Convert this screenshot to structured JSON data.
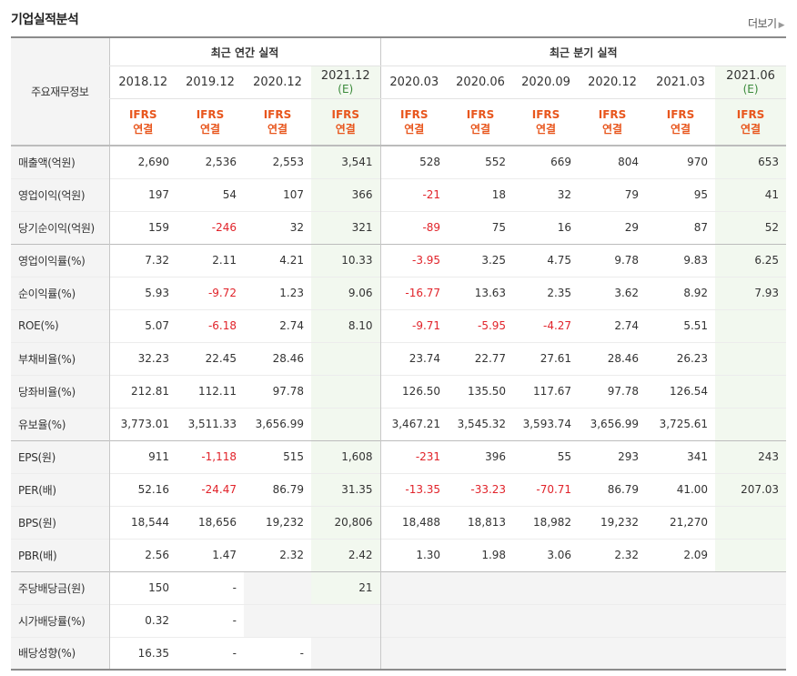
{
  "header": {
    "title": "기업실적분석",
    "more_label": "더보기",
    "more_icon": "chevron-right-icon"
  },
  "table": {
    "label_header": "주요재무정보",
    "groups": [
      {
        "label": "최근 연간 실적"
      },
      {
        "label": "최근 분기 실적"
      }
    ],
    "columns": [
      {
        "period": "2018.12",
        "est": "",
        "ifrs": "IFRS",
        "basis": "연결"
      },
      {
        "period": "2019.12",
        "est": "",
        "ifrs": "IFRS",
        "basis": "연결"
      },
      {
        "period": "2020.12",
        "est": "",
        "ifrs": "IFRS",
        "basis": "연결"
      },
      {
        "period": "2021.12",
        "est": "(E)",
        "ifrs": "IFRS",
        "basis": "연결"
      },
      {
        "period": "2020.03",
        "est": "",
        "ifrs": "IFRS",
        "basis": "연결"
      },
      {
        "period": "2020.06",
        "est": "",
        "ifrs": "IFRS",
        "basis": "연결"
      },
      {
        "period": "2020.09",
        "est": "",
        "ifrs": "IFRS",
        "basis": "연결"
      },
      {
        "period": "2020.12",
        "est": "",
        "ifrs": "IFRS",
        "basis": "연결"
      },
      {
        "period": "2021.03",
        "est": "",
        "ifrs": "IFRS",
        "basis": "연결"
      },
      {
        "period": "2021.06",
        "est": "(E)",
        "ifrs": "IFRS",
        "basis": "연결"
      }
    ],
    "rows": [
      {
        "label": "매출액(억원)",
        "values": [
          "2,690",
          "2,536",
          "2,553",
          "3,541",
          "528",
          "552",
          "669",
          "804",
          "970",
          "653"
        ]
      },
      {
        "label": "영업이익(억원)",
        "values": [
          "197",
          "54",
          "107",
          "366",
          "-21",
          "18",
          "32",
          "79",
          "95",
          "41"
        ]
      },
      {
        "label": "당기순이익(억원)",
        "values": [
          "159",
          "-246",
          "32",
          "321",
          "-89",
          "75",
          "16",
          "29",
          "87",
          "52"
        ]
      },
      {
        "label": "영업이익률(%)",
        "values": [
          "7.32",
          "2.11",
          "4.21",
          "10.33",
          "-3.95",
          "3.25",
          "4.75",
          "9.78",
          "9.83",
          "6.25"
        ]
      },
      {
        "label": "순이익률(%)",
        "values": [
          "5.93",
          "-9.72",
          "1.23",
          "9.06",
          "-16.77",
          "13.63",
          "2.35",
          "3.62",
          "8.92",
          "7.93"
        ]
      },
      {
        "label": "ROE(%)",
        "values": [
          "5.07",
          "-6.18",
          "2.74",
          "8.10",
          "-9.71",
          "-5.95",
          "-4.27",
          "2.74",
          "5.51",
          ""
        ]
      },
      {
        "label": "부채비율(%)",
        "values": [
          "32.23",
          "22.45",
          "28.46",
          "",
          "23.74",
          "22.77",
          "27.61",
          "28.46",
          "26.23",
          ""
        ]
      },
      {
        "label": "당좌비율(%)",
        "values": [
          "212.81",
          "112.11",
          "97.78",
          "",
          "126.50",
          "135.50",
          "117.67",
          "97.78",
          "126.54",
          ""
        ]
      },
      {
        "label": "유보율(%)",
        "values": [
          "3,773.01",
          "3,511.33",
          "3,656.99",
          "",
          "3,467.21",
          "3,545.32",
          "3,593.74",
          "3,656.99",
          "3,725.61",
          ""
        ]
      },
      {
        "label": "EPS(원)",
        "values": [
          "911",
          "-1,118",
          "515",
          "1,608",
          "-231",
          "396",
          "55",
          "293",
          "341",
          "243"
        ]
      },
      {
        "label": "PER(배)",
        "values": [
          "52.16",
          "-24.47",
          "86.79",
          "31.35",
          "-13.35",
          "-33.23",
          "-70.71",
          "86.79",
          "41.00",
          "207.03"
        ]
      },
      {
        "label": "BPS(원)",
        "values": [
          "18,544",
          "18,656",
          "19,232",
          "20,806",
          "18,488",
          "18,813",
          "18,982",
          "19,232",
          "21,270",
          ""
        ]
      },
      {
        "label": "PBR(배)",
        "values": [
          "2.56",
          "1.47",
          "2.32",
          "2.42",
          "1.30",
          "1.98",
          "3.06",
          "2.32",
          "2.09",
          ""
        ]
      },
      {
        "label": "주당배당금(원)",
        "values": [
          "150",
          "-",
          "",
          "21",
          "",
          "",
          "",
          "",
          "",
          ""
        ]
      },
      {
        "label": "시가배당률(%)",
        "values": [
          "0.32",
          "-",
          "",
          "",
          "",
          "",
          "",
          "",
          "",
          ""
        ]
      },
      {
        "label": "배당성향(%)",
        "values": [
          "16.35",
          "-",
          "-",
          "",
          "",
          "",
          "",
          "",
          "",
          ""
        ]
      }
    ],
    "empty_cells": [
      [
        13,
        2
      ],
      [
        14,
        2
      ],
      [
        14,
        3
      ],
      [
        15,
        3
      ]
    ],
    "empty_quarter_rows_from": 13,
    "colors": {
      "negative": "#e1232a",
      "ifrs": "#e8561d",
      "estimate_text": "#3a8a3a",
      "estimate_bg": "#f2f8ef"
    }
  }
}
